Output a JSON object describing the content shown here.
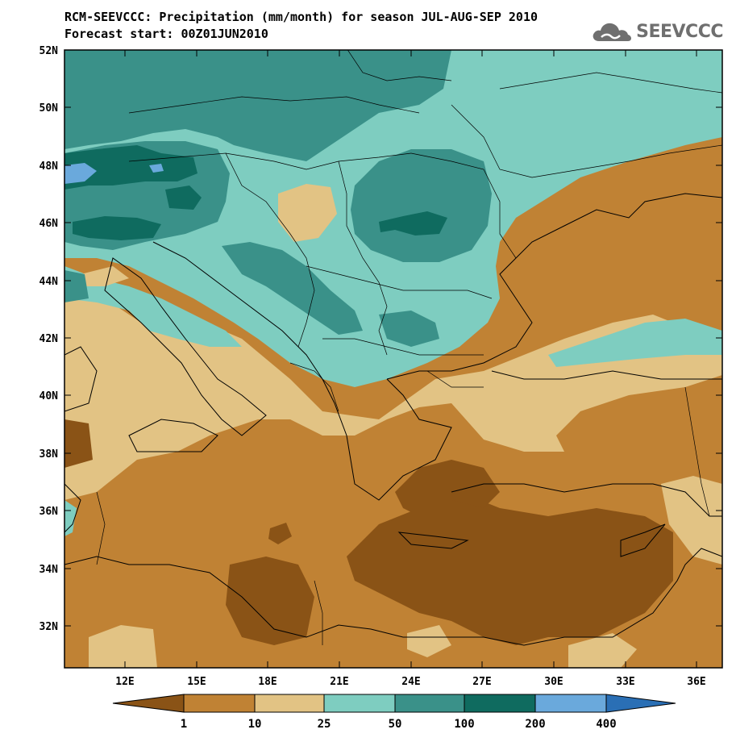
{
  "title": {
    "line1": "RCM-SEEVCCC: Precipitation (mm/month) for season JUL-AUG-SEP 2010",
    "line2": "Forecast start: 00Z01JUN2010"
  },
  "logo": {
    "text": "SEEVCCC",
    "icon": "cloud-icon"
  },
  "axes": {
    "y_ticks": [
      "52N",
      "50N",
      "48N",
      "46N",
      "44N",
      "42N",
      "40N",
      "38N",
      "36N",
      "34N",
      "32N"
    ],
    "x_ticks": [
      "12E",
      "15E",
      "18E",
      "21E",
      "24E",
      "27E",
      "30E",
      "33E",
      "36E"
    ]
  },
  "colorbar": {
    "labels": [
      "1",
      "10",
      "25",
      "50",
      "100",
      "200",
      "400"
    ],
    "colors": [
      "#8a5316",
      "#c08234",
      "#e2c384",
      "#7ecdc0",
      "#3a9189",
      "#0f6b5f",
      "#6aa9dc",
      "#2a6fb5"
    ]
  },
  "palette": {
    "dark_brown": "#8a5316",
    "brown": "#c08234",
    "tan": "#e2c384",
    "light_teal": "#7ecdc0",
    "teal": "#3a9189",
    "dark_teal": "#0f6b5f",
    "light_blue": "#6aa9dc",
    "blue": "#2a6fb5"
  }
}
